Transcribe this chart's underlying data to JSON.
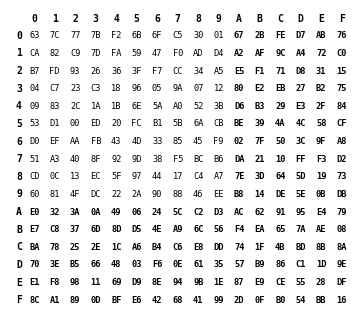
{
  "col_headers": [
    "0",
    "1",
    "2",
    "3",
    "4",
    "5",
    "6",
    "7",
    "8",
    "9",
    "A",
    "B",
    "C",
    "D",
    "E",
    "F"
  ],
  "row_headers": [
    "0",
    "1",
    "2",
    "3",
    "4",
    "5",
    "6",
    "7",
    "8",
    "9",
    "A",
    "B",
    "C",
    "D",
    "E",
    "F"
  ],
  "table": [
    [
      "63",
      "7C",
      "77",
      "7B",
      "F2",
      "6B",
      "6F",
      "C5",
      "30",
      "01",
      "67",
      "2B",
      "FE",
      "D7",
      "AB",
      "76"
    ],
    [
      "CA",
      "82",
      "C9",
      "7D",
      "FA",
      "59",
      "47",
      "F0",
      "AD",
      "D4",
      "A2",
      "AF",
      "9C",
      "A4",
      "72",
      "C0"
    ],
    [
      "B7",
      "FD",
      "93",
      "26",
      "36",
      "3F",
      "F7",
      "CC",
      "34",
      "A5",
      "E5",
      "F1",
      "71",
      "D8",
      "31",
      "15"
    ],
    [
      "04",
      "C7",
      "23",
      "C3",
      "18",
      "96",
      "05",
      "9A",
      "07",
      "12",
      "80",
      "E2",
      "EB",
      "27",
      "B2",
      "75"
    ],
    [
      "09",
      "83",
      "2C",
      "1A",
      "1B",
      "6E",
      "5A",
      "A0",
      "52",
      "3B",
      "D6",
      "B3",
      "29",
      "E3",
      "2F",
      "84"
    ],
    [
      "53",
      "D1",
      "00",
      "ED",
      "20",
      "FC",
      "B1",
      "5B",
      "6A",
      "CB",
      "BE",
      "39",
      "4A",
      "4C",
      "58",
      "CF"
    ],
    [
      "D0",
      "EF",
      "AA",
      "FB",
      "43",
      "4D",
      "33",
      "85",
      "45",
      "F9",
      "02",
      "7F",
      "50",
      "3C",
      "9F",
      "A8"
    ],
    [
      "51",
      "A3",
      "40",
      "8F",
      "92",
      "9D",
      "38",
      "F5",
      "BC",
      "B6",
      "DA",
      "21",
      "10",
      "FF",
      "F3",
      "D2"
    ],
    [
      "CD",
      "0C",
      "13",
      "EC",
      "5F",
      "97",
      "44",
      "17",
      "C4",
      "A7",
      "7E",
      "3D",
      "64",
      "5D",
      "19",
      "73"
    ],
    [
      "60",
      "81",
      "4F",
      "DC",
      "22",
      "2A",
      "90",
      "88",
      "46",
      "EE",
      "B8",
      "14",
      "DE",
      "5E",
      "0B",
      "DB"
    ],
    [
      "E0",
      "32",
      "3A",
      "0A",
      "49",
      "06",
      "24",
      "5C",
      "C2",
      "D3",
      "AC",
      "62",
      "91",
      "95",
      "E4",
      "79"
    ],
    [
      "E7",
      "C8",
      "37",
      "6D",
      "8D",
      "D5",
      "4E",
      "A9",
      "6C",
      "56",
      "F4",
      "EA",
      "65",
      "7A",
      "AE",
      "08"
    ],
    [
      "BA",
      "78",
      "25",
      "2E",
      "1C",
      "A6",
      "B4",
      "C6",
      "E8",
      "DD",
      "74",
      "1F",
      "4B",
      "BD",
      "8B",
      "8A"
    ],
    [
      "70",
      "3E",
      "B5",
      "66",
      "48",
      "03",
      "F6",
      "0E",
      "61",
      "35",
      "57",
      "B9",
      "86",
      "C1",
      "1D",
      "9E"
    ],
    [
      "E1",
      "F8",
      "98",
      "11",
      "69",
      "D9",
      "8E",
      "94",
      "9B",
      "1E",
      "87",
      "E9",
      "CE",
      "55",
      "28",
      "DF"
    ],
    [
      "8C",
      "A1",
      "89",
      "0D",
      "BF",
      "E6",
      "42",
      "68",
      "41",
      "99",
      "2D",
      "0F",
      "B0",
      "54",
      "BB",
      "16"
    ]
  ],
  "background_color": "#FFFFFF",
  "text_color": "#000000",
  "header_fontsize": 7.0,
  "cell_fontsize": 6.2,
  "fig_width": 3.52,
  "fig_height": 3.09,
  "dpi": 100
}
